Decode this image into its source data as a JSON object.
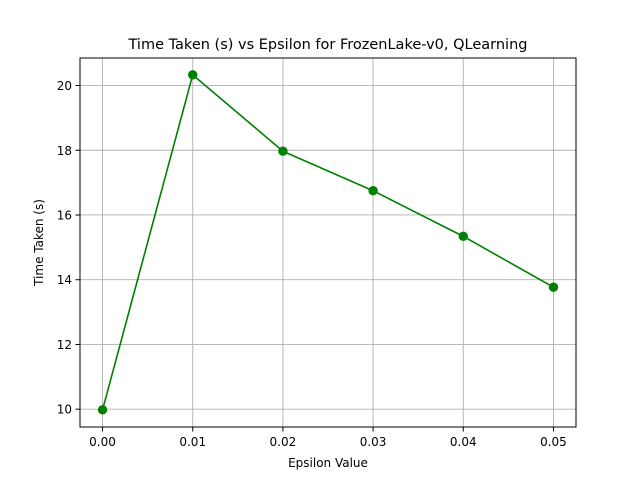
{
  "chart_data": {
    "type": "line",
    "title": "Time Taken (s) vs Epsilon for FrozenLake-v0, QLearning",
    "xlabel": "Epsilon Value",
    "ylabel": "Time Taken (s)",
    "x": [
      0.0,
      0.01,
      0.02,
      0.03,
      0.04,
      0.05
    ],
    "series": [
      {
        "name": "Time Taken (s)",
        "values": [
          9.98,
          20.33,
          17.97,
          16.75,
          15.34,
          13.77
        ],
        "color": "#008000",
        "marker": "circle"
      }
    ],
    "xlim": [
      -0.0025,
      0.0525
    ],
    "ylim": [
      9.45,
      20.85
    ],
    "xticks": [
      0.0,
      0.01,
      0.02,
      0.03,
      0.04,
      0.05
    ],
    "xtick_labels": [
      "0.00",
      "0.01",
      "0.02",
      "0.03",
      "0.04",
      "0.05"
    ],
    "yticks": [
      10,
      12,
      14,
      16,
      18,
      20
    ],
    "ytick_labels": [
      "10",
      "12",
      "14",
      "16",
      "18",
      "20"
    ],
    "grid": true,
    "grid_color": "#b0b0b0",
    "axes_color": "#000000"
  }
}
